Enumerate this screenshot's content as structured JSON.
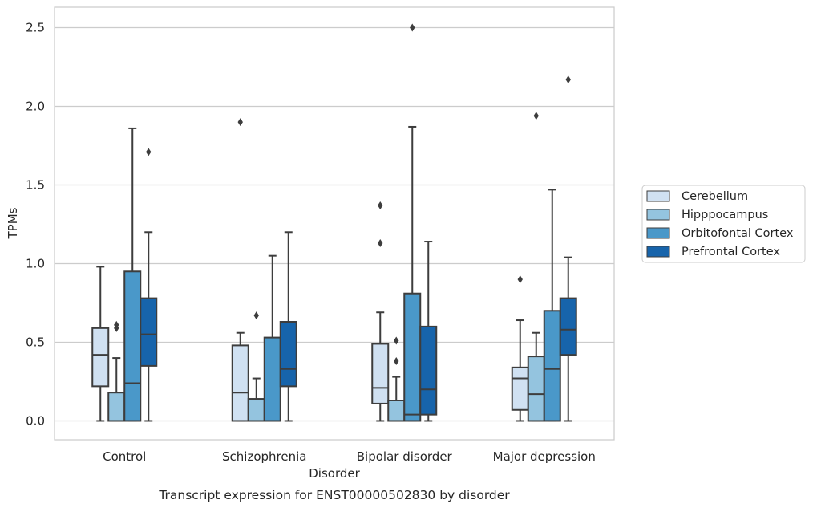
{
  "chart_data": {
    "type": "boxplot",
    "title": "",
    "caption": "Transcript expression for ENST00000502830 by disorder",
    "xlabel": "Disorder",
    "ylabel": "TPMs",
    "ylim": [
      -0.12,
      2.63
    ],
    "yticks": [
      0.0,
      0.5,
      1.0,
      1.5,
      2.0,
      2.5
    ],
    "ytick_labels": [
      "0.0",
      "0.5",
      "1.0",
      "1.5",
      "2.0",
      "2.5"
    ],
    "grid": "horizontal",
    "legend_position": "right",
    "categories": [
      "Control",
      "Schizophrenia",
      "Bipolar disorder",
      "Major depression"
    ],
    "series": [
      {
        "name": "Cerebellum",
        "color": "#d0e1f2",
        "boxes": [
          {
            "whislo": 0.0,
            "q1": 0.22,
            "med": 0.42,
            "q3": 0.59,
            "whishi": 0.98,
            "fliers": []
          },
          {
            "whislo": 0.0,
            "q1": 0.0,
            "med": 0.18,
            "q3": 0.48,
            "whishi": 0.56,
            "fliers": [
              1.9
            ]
          },
          {
            "whislo": 0.0,
            "q1": 0.11,
            "med": 0.21,
            "q3": 0.49,
            "whishi": 0.69,
            "fliers": [
              1.37,
              1.13
            ]
          },
          {
            "whislo": 0.0,
            "q1": 0.07,
            "med": 0.27,
            "q3": 0.34,
            "whishi": 0.64,
            "fliers": [
              0.9
            ]
          }
        ]
      },
      {
        "name": "Hipppocampus",
        "color": "#94c4df",
        "boxes": [
          {
            "whislo": 0.0,
            "q1": 0.0,
            "med": 0.0,
            "q3": 0.18,
            "whishi": 0.4,
            "fliers": [
              0.59,
              0.61
            ]
          },
          {
            "whislo": 0.0,
            "q1": 0.0,
            "med": 0.0,
            "q3": 0.14,
            "whishi": 0.27,
            "fliers": [
              0.67
            ]
          },
          {
            "whislo": 0.0,
            "q1": 0.0,
            "med": 0.0,
            "q3": 0.13,
            "whishi": 0.28,
            "fliers": [
              0.38,
              0.51
            ]
          },
          {
            "whislo": 0.0,
            "q1": 0.0,
            "med": 0.17,
            "q3": 0.41,
            "whishi": 0.56,
            "fliers": [
              1.94
            ]
          }
        ]
      },
      {
        "name": "Orbitofontal Cortex",
        "color": "#4a98c9",
        "boxes": [
          {
            "whislo": 0.0,
            "q1": 0.0,
            "med": 0.24,
            "q3": 0.95,
            "whishi": 1.86,
            "fliers": []
          },
          {
            "whislo": 0.0,
            "q1": 0.0,
            "med": 0.0,
            "q3": 0.53,
            "whishi": 1.05,
            "fliers": []
          },
          {
            "whislo": 0.0,
            "q1": 0.0,
            "med": 0.04,
            "q3": 0.81,
            "whishi": 1.87,
            "fliers": [
              2.5
            ]
          },
          {
            "whislo": 0.0,
            "q1": 0.0,
            "med": 0.33,
            "q3": 0.7,
            "whishi": 1.47,
            "fliers": []
          }
        ]
      },
      {
        "name": "Prefrontal Cortex",
        "color": "#1764ab",
        "boxes": [
          {
            "whislo": 0.0,
            "q1": 0.35,
            "med": 0.55,
            "q3": 0.78,
            "whishi": 1.2,
            "fliers": [
              1.71
            ]
          },
          {
            "whislo": 0.0,
            "q1": 0.22,
            "med": 0.33,
            "q3": 0.63,
            "whishi": 1.2,
            "fliers": []
          },
          {
            "whislo": 0.0,
            "q1": 0.04,
            "med": 0.2,
            "q3": 0.6,
            "whishi": 1.14,
            "fliers": []
          },
          {
            "whislo": 0.0,
            "q1": 0.42,
            "med": 0.58,
            "q3": 0.78,
            "whishi": 1.04,
            "fliers": [
              2.17
            ]
          }
        ]
      }
    ]
  }
}
